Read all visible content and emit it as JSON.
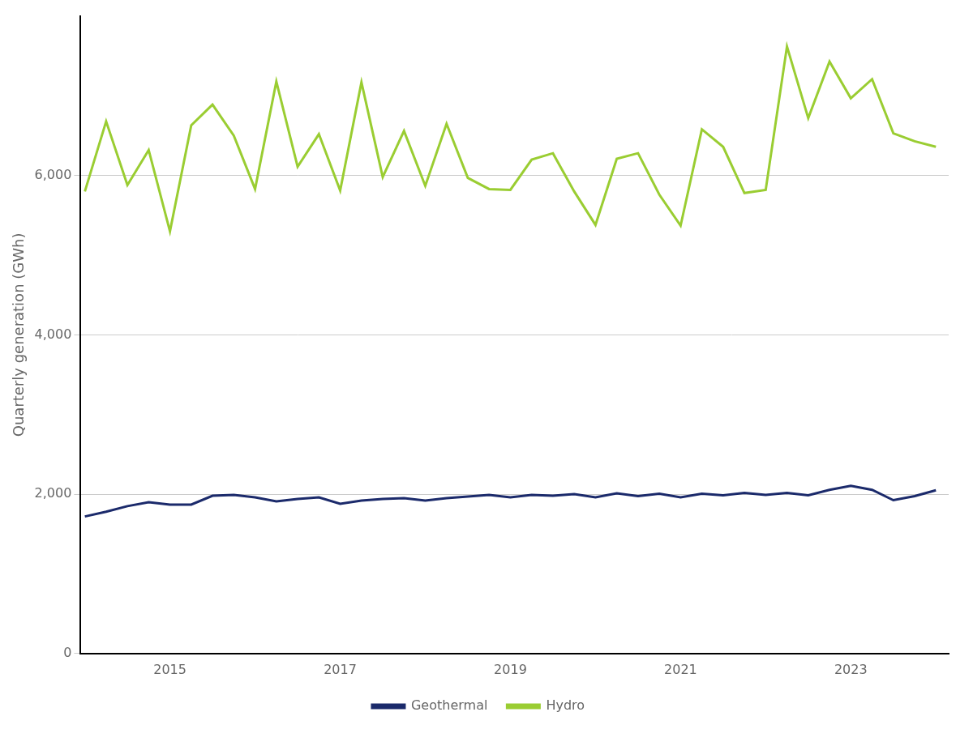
{
  "chart_data": {
    "type": "line",
    "y_label": "Quarterly generation (GWh)",
    "x": [
      2014,
      2014.25,
      2014.5,
      2014.75,
      2015,
      2015.25,
      2015.5,
      2015.75,
      2016,
      2016.25,
      2016.5,
      2016.75,
      2017,
      2017.25,
      2017.5,
      2017.75,
      2018,
      2018.25,
      2018.5,
      2018.75,
      2019,
      2019.25,
      2019.5,
      2019.75,
      2020,
      2020.25,
      2020.5,
      2020.75,
      2021,
      2021.25,
      2021.5,
      2021.75,
      2022,
      2022.25,
      2022.5,
      2022.75,
      2023,
      2023.25,
      2023.5,
      2023.75,
      2024
    ],
    "series": [
      {
        "name": "Hydro",
        "color": "#9acd32",
        "values": [
          5800,
          6680,
          5880,
          6320,
          5300,
          6630,
          6890,
          6500,
          5830,
          7180,
          6110,
          6520,
          5810,
          7170,
          5980,
          6560,
          5870,
          6650,
          5970,
          5830,
          5820,
          6200,
          6280,
          5800,
          5380,
          6210,
          6280,
          5760,
          5370,
          6580,
          6360,
          5780,
          5820,
          7620,
          6720,
          7430,
          6970,
          7210,
          6530,
          6430,
          6360
        ]
      },
      {
        "name": "Geothermal",
        "color": "#1b2a6b",
        "values": [
          1720,
          1780,
          1850,
          1900,
          1870,
          1870,
          1980,
          1990,
          1960,
          1910,
          1940,
          1960,
          1880,
          1920,
          1940,
          1950,
          1920,
          1950,
          1970,
          1990,
          1960,
          1990,
          1980,
          2000,
          1960,
          2010,
          1975,
          2005,
          1960,
          2005,
          1985,
          2015,
          1990,
          2015,
          1985,
          2055,
          2105,
          2055,
          1925,
          1975,
          2050
        ]
      }
    ],
    "xlim": [
      2013.95,
      2024.15
    ],
    "xticks": [
      2015,
      2017,
      2019,
      2021,
      2023
    ],
    "ylim": [
      0,
      8000
    ],
    "yticks": [
      0,
      {
        "value": 2000,
        "label": "2,000"
      },
      {
        "value": 4000,
        "label": "4,000"
      },
      {
        "value": 6000,
        "label": "6,000"
      }
    ],
    "grid": "y",
    "legend": "bottom"
  }
}
